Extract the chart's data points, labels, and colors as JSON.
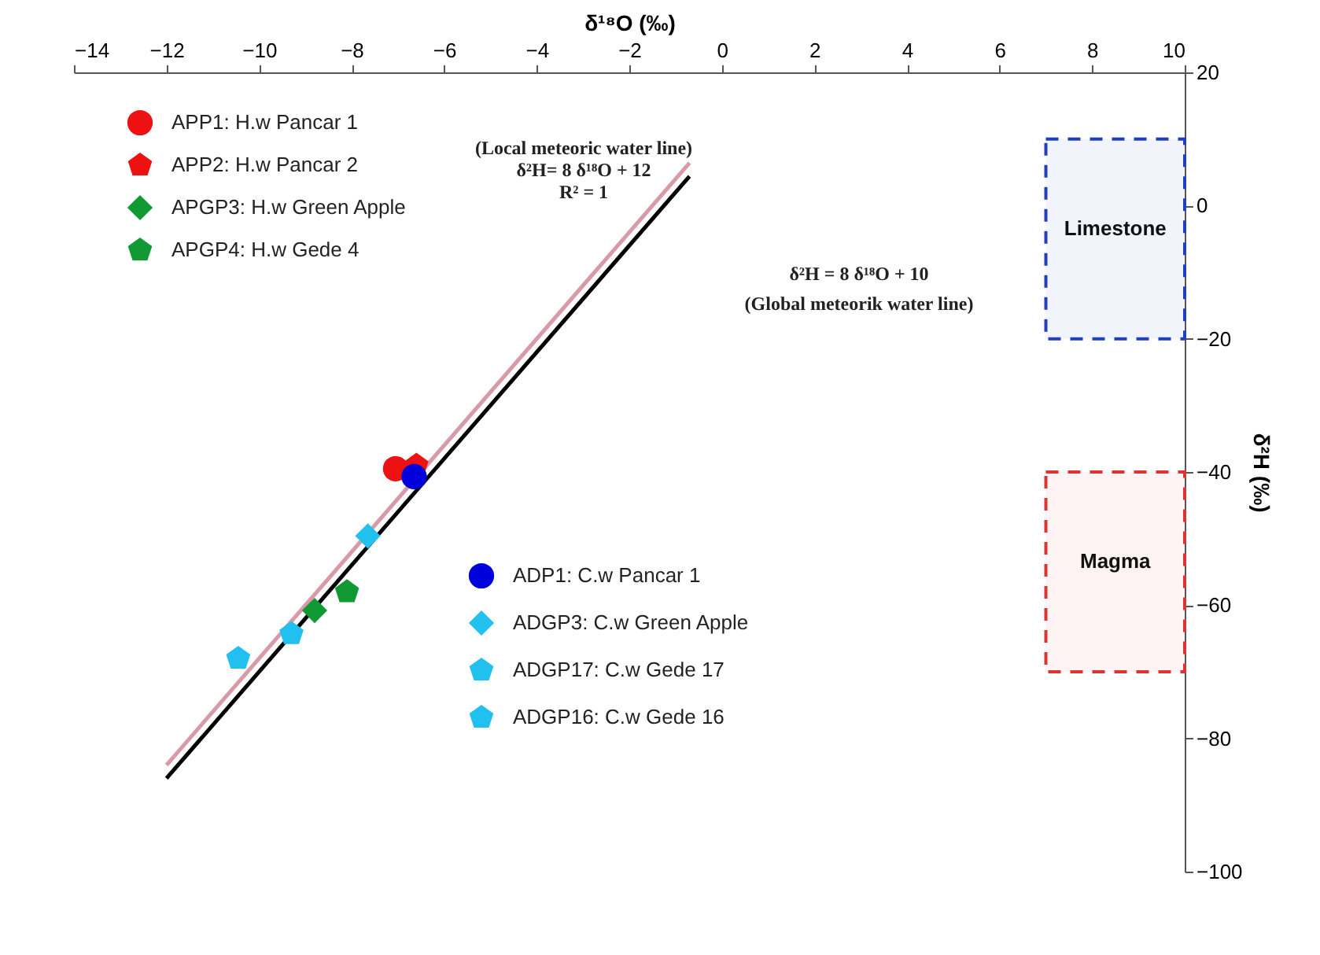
{
  "chart_data": {
    "type": "scatter",
    "xlabel": "δ¹⁸O (‰)",
    "ylabel": "δ²H (‰)",
    "xlim": [
      -14,
      10
    ],
    "xticks": [
      -14,
      -12,
      -10,
      -8,
      -6,
      -4,
      -2,
      0,
      2,
      4,
      6,
      8,
      10
    ],
    "ylim": [
      -100,
      20
    ],
    "yticks": [
      -100,
      -80,
      -60,
      -40,
      -20,
      0,
      20
    ],
    "grid": false,
    "legend": "top left",
    "series": [
      {
        "type": "line",
        "color": "#d99aa8",
        "x": [
          -12,
          -0.7
        ],
        "values": [
          -84,
          6.4
        ],
        "line_style": "solid"
      },
      {
        "type": "line",
        "color": "#000000",
        "x": [
          -12,
          -0.7
        ],
        "values": [
          -86,
          4.4
        ],
        "line_style": "solid"
      },
      {
        "name": "APP1: H.w Pancar 1",
        "color": "#ee1111",
        "marker": "circle",
        "x": [
          -7.05
        ],
        "values": [
          -39.5
        ]
      },
      {
        "name": "APP2: H.w Pancar 2",
        "color": "#ee1111",
        "x": [
          -6.6
        ],
        "values": [
          -39
        ]
      },
      {
        "name": "APGP3: H.w Green Apple",
        "color": "#119933",
        "marker": "diamond",
        "x": [
          -8.8
        ],
        "values": [
          -60.8
        ]
      },
      {
        "name": "APGP4: H.w Gede 4",
        "color": "#119933",
        "x": [
          -8.1
        ],
        "values": [
          -58
        ]
      },
      {
        "name": "ADP1: C.w Pancar 1",
        "color": "#0000dd",
        "marker": "circle",
        "x": [
          -6.65
        ],
        "values": [
          -40.7
        ]
      },
      {
        "name": "ADGP3: C.w Green Apple",
        "color": "#22c0ee",
        "marker": "diamond",
        "x": [
          -7.65
        ],
        "values": [
          -49.6
        ]
      },
      {
        "name": "ADGP17: C.w Gede 17",
        "color": "#22c0ee",
        "x": [
          -9.3
        ],
        "values": [
          -64.3
        ]
      },
      {
        "name": "ADGP16: C.w Gede 16",
        "color": "#22c0ee",
        "x": [
          -10.45
        ],
        "values": [
          -68
        ]
      }
    ],
    "bands": [
      {
        "axis": "y",
        "from": -20,
        "to": 10,
        "label": "Limestone",
        "color": "#1f3fbf"
      },
      {
        "axis": "y",
        "from": -70,
        "to": -40,
        "label": "Magma",
        "color": "#dd3333"
      }
    ],
    "annotations": [
      "(Local meteoric water line)",
      "δ²H= 8 δ¹⁸O + 12",
      "R² = 1",
      "δ²H = 8 δ¹⁸O + 10",
      "(Global meteorik water line)"
    ]
  }
}
